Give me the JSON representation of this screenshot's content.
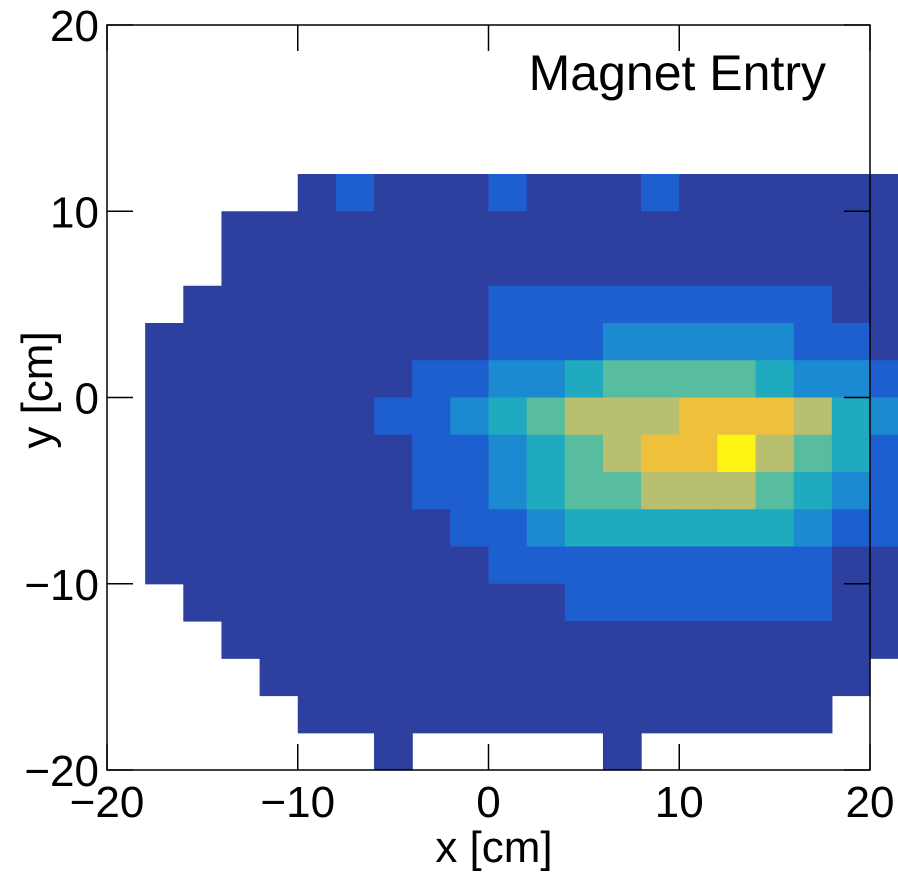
{
  "chart_data": {
    "type": "heatmap",
    "title": "Magnet Entry",
    "xlabel": "x [cm]",
    "ylabel": "y [cm]",
    "xlim": [
      -20,
      20
    ],
    "ylim": [
      -20,
      20
    ],
    "x_ticks": [
      -20,
      -10,
      0,
      10,
      20
    ],
    "y_ticks": [
      -20,
      -10,
      0,
      10,
      20
    ],
    "x_tick_labels": [
      "−20",
      "−10",
      "0",
      "10",
      "20"
    ],
    "y_tick_labels": [
      "−20",
      "−10",
      "0",
      "10",
      "20"
    ],
    "bin_width": 2,
    "bin_height": 2,
    "bin_x_min": -20,
    "bin_y_max": 12,
    "color_scale": [
      "#2d3f9f",
      "#1e5fd0",
      "#1c8ad0",
      "#20aac0",
      "#58bd9e",
      "#b8bf6e",
      "#efc13a",
      "#fff514"
    ],
    "grid": false,
    "legend": "none",
    "levels_legend": "0=empty,1=dark blue,2=blue,3=light blue,4=cyan,5=teal-green,6=olive,7=gold,8=yellow",
    "rows": [
      "00000121112111211111100",
      "00011111111111111111110",
      "00011111111111111111110",
      "00111111112222222221111",
      "01111111112223333322111",
      "01111111223345555433211",
      "01111112234566677764321",
      "01111111223456778654211",
      "01111111223455666543211",
      "01111111122344444432211",
      "01111111112222222221111",
      "00111111111122222221111",
      "00011111111111111111100",
      "00001111111111111111000",
      "00000111111111111110000",
      "00000001000001000000000"
    ]
  }
}
